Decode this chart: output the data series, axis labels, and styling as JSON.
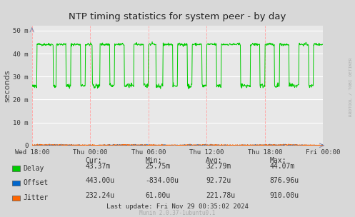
{
  "title": "NTP timing statistics for system peer - by day",
  "ylabel": "seconds",
  "background_color": "#d8d8d8",
  "plot_background": "#e8e8e8",
  "grid_color_major": "#ffffff",
  "grid_color_minor": "#ffaaaa",
  "ytick_labels": [
    "0",
    "10 m",
    "20 m",
    "30 m",
    "40 m",
    "50 m"
  ],
  "xtick_labels": [
    "Wed 18:00",
    "Thu 00:00",
    "Thu 06:00",
    "Thu 12:00",
    "Thu 18:00",
    "Fri 00:00"
  ],
  "delay_color": "#00cc00",
  "offset_color": "#0066cc",
  "jitter_color": "#ff6600",
  "legend_labels": [
    "Delay",
    "Offset",
    "Jitter"
  ],
  "stats_header": [
    "Cur:",
    "Min:",
    "Avg:",
    "Max:"
  ],
  "stats_delay": [
    "43.37m",
    "25.75m",
    "32.79m",
    "44.07m"
  ],
  "stats_offset": [
    "443.00u",
    "-834.00u",
    "92.72u",
    "876.96u"
  ],
  "stats_jitter": [
    "232.24u",
    "61.00u",
    "221.78u",
    "910.00u"
  ],
  "last_update": "Last update: Fri Nov 29 00:35:02 2024",
  "munin_version": "Munin 2.0.37-1ubuntu0.1",
  "watermark": "RRDTOOL / TOBI OETIKER",
  "ylim": [
    0,
    52
  ],
  "num_points": 800
}
